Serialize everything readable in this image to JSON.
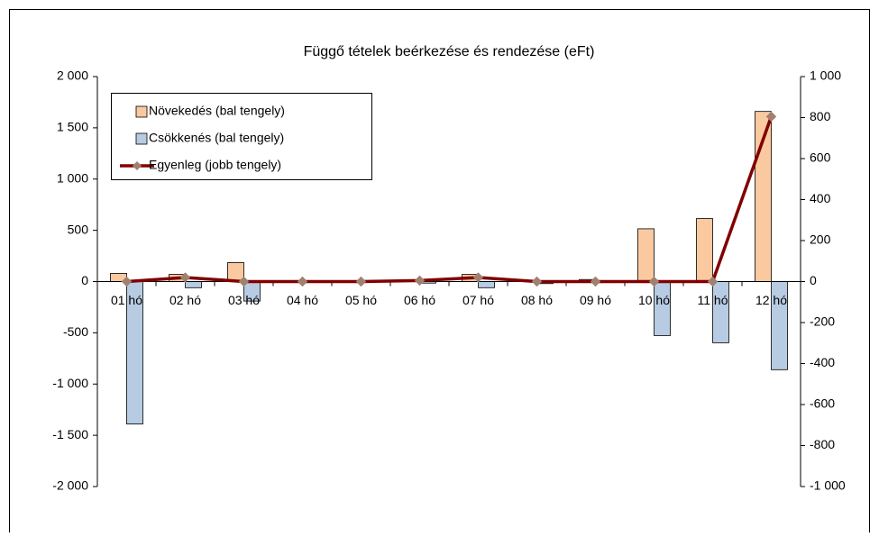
{
  "chart_data": {
    "type": "bar",
    "title": "Függő tételek beérkezése és rendezése (eFt)",
    "categories": [
      "01 hó",
      "02 hó",
      "03 hó",
      "04 hó",
      "05 hó",
      "06 hó",
      "07 hó",
      "08 hó",
      "09 hó",
      "10 hó",
      "11 hó",
      "12 hó"
    ],
    "series": [
      {
        "name": "Növekedés (bal tengely)",
        "color": "#fac9a0",
        "type": "bar",
        "values": [
          80,
          70,
          185,
          5,
          5,
          10,
          70,
          5,
          20,
          515,
          615,
          1660
        ]
      },
      {
        "name": "Csökkenés (bal tengely)",
        "color": "#b7cbe3",
        "type": "bar",
        "values": [
          -1390,
          -60,
          -190,
          -5,
          -5,
          -15,
          -60,
          -20,
          -10,
          -527,
          -597,
          -860
        ]
      },
      {
        "name": "Egyenleg (jobb tengely)",
        "color": "#800000",
        "type": "line",
        "axis": "y2",
        "values": [
          0,
          20,
          0,
          0,
          0,
          5,
          20,
          0,
          0,
          0,
          0,
          805
        ]
      }
    ],
    "ylim": [
      -2000,
      2000
    ],
    "yticks": [
      {
        "value": -2000,
        "label": "-2 000"
      },
      {
        "value": -1500,
        "label": "-1 500"
      },
      {
        "value": -1000,
        "label": "-1 000"
      },
      -500,
      0,
      500,
      {
        "value": 1000,
        "label": "1 000"
      },
      {
        "value": 1500,
        "label": "1 500"
      },
      {
        "value": 2000,
        "label": "2 000"
      }
    ],
    "y2lim": [
      -1000,
      1000
    ],
    "y2ticks": [
      {
        "value": -1000,
        "label": "-1 000"
      },
      -800,
      -600,
      -400,
      -200,
      0,
      200,
      400,
      600,
      800,
      {
        "value": 1000,
        "label": "1 000"
      }
    ],
    "grid": false,
    "legend": "upper left"
  }
}
